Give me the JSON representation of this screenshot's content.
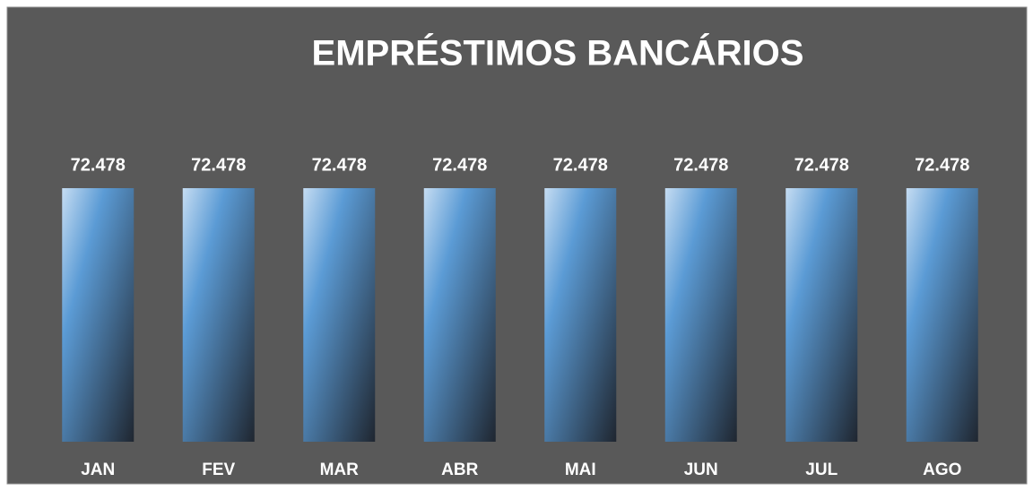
{
  "chart_data": {
    "type": "bar",
    "title": "EMPRÉSTIMOS BANCÁRIOS",
    "categories": [
      "JAN",
      "FEV",
      "MAR",
      "ABR",
      "MAI",
      "JUN",
      "JUL",
      "AGO"
    ],
    "values": [
      72478,
      72478,
      72478,
      72478,
      72478,
      72478,
      72478,
      72478
    ],
    "value_labels": [
      "72.478",
      "72.478",
      "72.478",
      "72.478",
      "72.478",
      "72.478",
      "72.478",
      "72.478"
    ],
    "color": "#5b9bd5"
  }
}
